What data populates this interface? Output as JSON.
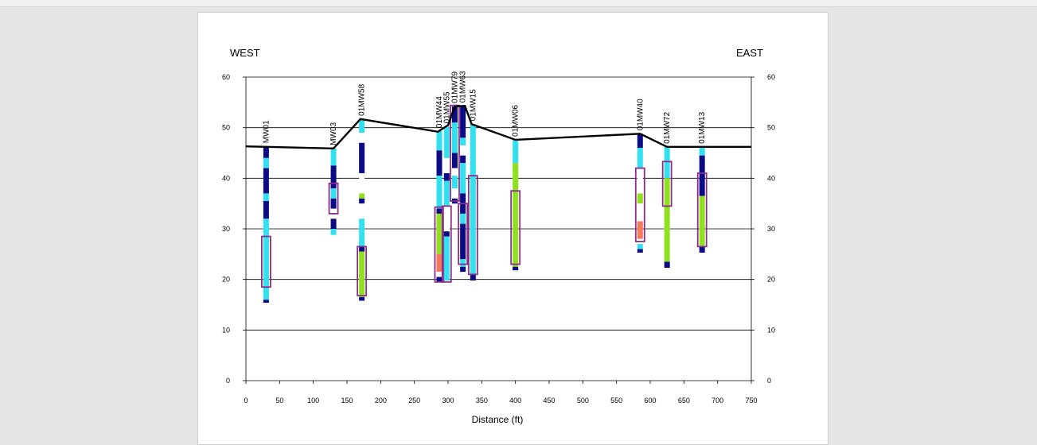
{
  "chart_data": {
    "type": "cross-section",
    "left_label": "WEST",
    "right_label": "EAST",
    "xlabel": "Distance (ft)",
    "ylabel": "",
    "xlim": [
      0,
      750
    ],
    "ylim": [
      0,
      60
    ],
    "xticks": [
      0,
      50,
      100,
      150,
      200,
      250,
      300,
      350,
      400,
      450,
      500,
      550,
      600,
      650,
      700,
      750
    ],
    "yticks": [
      0,
      10,
      20,
      30,
      40,
      50,
      60
    ],
    "grid": "horizontal",
    "surface": [
      [
        0,
        46.3
      ],
      [
        130,
        45.9
      ],
      [
        170,
        51.7
      ],
      [
        285,
        49.2
      ],
      [
        300,
        50.5
      ],
      [
        310,
        54.2
      ],
      [
        325,
        54.3
      ],
      [
        335,
        50.7
      ],
      [
        400,
        47.6
      ],
      [
        585,
        48.8
      ],
      [
        625,
        46.2
      ],
      [
        750,
        46.2
      ]
    ],
    "colors": {
      "dark": "#0b0b86",
      "light": "#33e0f0",
      "green": "#90e020",
      "salmon": "#f57a5c",
      "white": "#ffffff",
      "screen": "#8b2d8b",
      "surface": "#000000"
    },
    "wells": [
      {
        "name": "MW01",
        "x": 30,
        "layers": [
          [
            46.3,
            44,
            "dark"
          ],
          [
            44,
            42,
            "light"
          ],
          [
            42,
            37,
            "dark"
          ],
          [
            37,
            35.5,
            "light"
          ],
          [
            35.5,
            32,
            "dark"
          ],
          [
            32,
            16,
            "light"
          ],
          [
            16,
            15.4,
            "dark"
          ]
        ],
        "screen": [
          28.5,
          18.5
        ]
      },
      {
        "name": "MW03",
        "x": 130,
        "layers": [
          [
            45.9,
            42.5,
            "light"
          ],
          [
            42.5,
            38,
            "dark"
          ],
          [
            38,
            36,
            "light"
          ],
          [
            36,
            34,
            "dark"
          ],
          [
            34,
            32,
            "white"
          ],
          [
            32,
            30,
            "dark"
          ],
          [
            30,
            28.8,
            "light"
          ]
        ],
        "screen": [
          39,
          33
        ]
      },
      {
        "name": "01MW58",
        "x": 172,
        "layers": [
          [
            51.7,
            49,
            "light"
          ],
          [
            49,
            47,
            "white"
          ],
          [
            47,
            41,
            "dark"
          ],
          [
            41,
            37,
            "white"
          ],
          [
            37,
            36,
            "green"
          ],
          [
            36,
            35,
            "dark"
          ],
          [
            35,
            32,
            "white"
          ],
          [
            32,
            26.5,
            "light"
          ],
          [
            26.5,
            25.5,
            "dark"
          ],
          [
            25.5,
            16.5,
            "green"
          ],
          [
            16.5,
            15.8,
            "dark"
          ]
        ],
        "screen": [
          26.5,
          16.8
        ]
      },
      {
        "name": "01MW44",
        "x": 287,
        "layers": [
          [
            49.3,
            45.5,
            "light"
          ],
          [
            45.5,
            40.5,
            "dark"
          ],
          [
            40.5,
            34,
            "light"
          ],
          [
            34,
            33,
            "dark"
          ],
          [
            33,
            25,
            "green"
          ],
          [
            25,
            21.5,
            "salmon"
          ],
          [
            21.5,
            20.5,
            "white"
          ],
          [
            20.5,
            19.5,
            "dark"
          ]
        ],
        "screen": [
          34.3,
          19.5
        ]
      },
      {
        "name": "01MW55",
        "x": 298,
        "layers": [
          [
            50.2,
            44,
            "light"
          ],
          [
            44,
            41,
            "white"
          ],
          [
            41,
            39.5,
            "dark"
          ],
          [
            39.5,
            34.5,
            "light"
          ],
          [
            34.5,
            29.5,
            "white"
          ],
          [
            29.5,
            28.5,
            "dark"
          ],
          [
            28.5,
            19.8,
            "light"
          ]
        ],
        "screen": [
          34.5,
          19.5
        ]
      },
      {
        "name": "01MW79",
        "x": 310,
        "layers": [
          [
            54.2,
            51,
            "dark"
          ],
          [
            51,
            45,
            "light"
          ],
          [
            45,
            42,
            "dark"
          ],
          [
            42,
            40.5,
            "white"
          ],
          [
            40.5,
            38,
            "light"
          ],
          [
            38,
            36,
            "white"
          ],
          [
            36,
            35,
            "dark"
          ]
        ],
        "screen": [
          54.4,
          35.5
        ]
      },
      {
        "name": "01MW63",
        "x": 322,
        "layers": [
          [
            54.3,
            48,
            "dark"
          ],
          [
            48,
            46.5,
            "light"
          ],
          [
            46.5,
            44.5,
            "white"
          ],
          [
            44.5,
            43,
            "dark"
          ],
          [
            43,
            37,
            "light"
          ],
          [
            37,
            33,
            "dark"
          ],
          [
            33,
            31,
            "light"
          ],
          [
            31,
            24,
            "dark"
          ],
          [
            24,
            22.5,
            "light"
          ],
          [
            22.5,
            21.5,
            "dark"
          ]
        ],
        "screen": [
          35,
          23
        ]
      },
      {
        "name": "01MW15",
        "x": 337,
        "layers": [
          [
            50.7,
            21,
            "light"
          ],
          [
            21,
            19.8,
            "dark"
          ]
        ],
        "screen": [
          40.5,
          21
        ]
      },
      {
        "name": "01MW06",
        "x": 400,
        "layers": [
          [
            47.6,
            43,
            "light"
          ],
          [
            43,
            22.5,
            "green"
          ],
          [
            22.5,
            21.8,
            "dark"
          ]
        ],
        "screen": [
          37.5,
          23
        ]
      },
      {
        "name": "01MW40",
        "x": 585,
        "layers": [
          [
            48.8,
            46,
            "dark"
          ],
          [
            46,
            42,
            "light"
          ],
          [
            42,
            37,
            "white"
          ],
          [
            37,
            35,
            "green"
          ],
          [
            35,
            31.5,
            "white"
          ],
          [
            31.5,
            28,
            "salmon"
          ],
          [
            28,
            27,
            "white"
          ],
          [
            27,
            26,
            "light"
          ],
          [
            26,
            25.3,
            "dark"
          ]
        ],
        "screen": [
          42,
          27.5
        ]
      },
      {
        "name": "01MW72",
        "x": 625,
        "layers": [
          [
            46.2,
            43.5,
            "light"
          ],
          [
            43.5,
            40,
            "light"
          ],
          [
            40,
            23.5,
            "green"
          ],
          [
            23.5,
            22.3,
            "dark"
          ]
        ],
        "screen": [
          43.3,
          34.5
        ]
      },
      {
        "name": "01MW13",
        "x": 677,
        "layers": [
          [
            46.2,
            44.5,
            "light"
          ],
          [
            44.5,
            41,
            "dark"
          ],
          [
            41,
            36.5,
            "dark"
          ],
          [
            36.5,
            26.5,
            "green"
          ],
          [
            26.5,
            25.3,
            "dark"
          ]
        ],
        "screen": [
          41,
          26.5
        ]
      }
    ]
  }
}
